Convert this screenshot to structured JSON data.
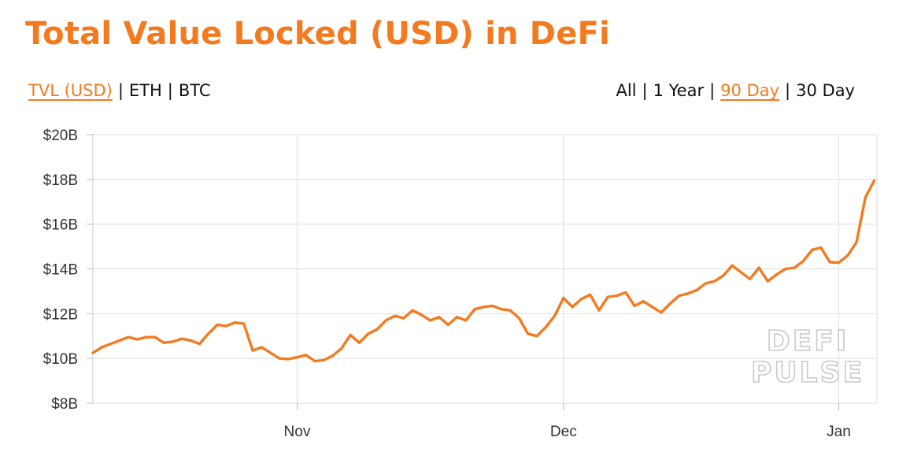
{
  "chart_data": {
    "type": "line",
    "title": "Total Value Locked (USD) in DeFi",
    "metric_tabs": [
      {
        "label": "TVL (USD)",
        "active": true
      },
      {
        "label": "ETH",
        "active": false
      },
      {
        "label": "BTC",
        "active": false
      }
    ],
    "range_tabs": [
      {
        "label": "All",
        "active": false
      },
      {
        "label": "1 Year",
        "active": false
      },
      {
        "label": "90 Day",
        "active": true
      },
      {
        "label": "30 Day",
        "active": false
      }
    ],
    "y_ticks": [
      "$8B",
      "$10B",
      "$12B",
      "$14B",
      "$16B",
      "$18B",
      "$20B"
    ],
    "x_ticks": [
      {
        "label": "Nov",
        "x": 0
      },
      {
        "label": "Dec",
        "x": 30
      },
      {
        "label": "Jan",
        "x": 61
      }
    ],
    "ylim": [
      8,
      20
    ],
    "xlim": [
      -23,
      65.3
    ],
    "grid": true,
    "line_color": "#f47a20",
    "watermark": [
      "DEFI",
      "PULSE"
    ],
    "series": [
      {
        "x": [
          -23,
          -22,
          -21,
          -20,
          -19,
          -18,
          -17,
          -16,
          -15,
          -14,
          -13,
          -12,
          -11,
          -10,
          -9,
          -8,
          -7,
          -6,
          -5,
          -4,
          -3,
          -2,
          -1,
          0,
          1,
          2,
          3,
          4,
          5,
          6,
          7,
          8,
          9,
          10,
          11,
          12,
          13,
          14,
          15,
          16,
          17,
          18,
          19,
          20,
          21,
          22,
          23,
          24,
          25,
          26,
          27,
          28,
          29,
          30,
          31,
          32,
          33,
          34,
          35,
          36,
          37,
          38,
          39,
          40,
          41,
          42,
          43,
          44,
          45,
          46,
          47,
          48,
          49,
          50,
          51,
          52,
          53,
          54,
          55,
          56,
          57,
          58,
          59,
          60,
          61,
          62,
          63,
          64,
          65
        ],
        "values": [
          10.25,
          10.5,
          10.65,
          10.8,
          10.95,
          10.85,
          10.95,
          10.95,
          10.7,
          10.75,
          10.88,
          10.8,
          10.65,
          11.1,
          11.5,
          11.45,
          11.6,
          11.55,
          10.35,
          10.5,
          10.25,
          10.0,
          9.97,
          10.05,
          10.15,
          9.88,
          9.92,
          10.12,
          10.45,
          11.05,
          10.7,
          11.1,
          11.3,
          11.7,
          11.9,
          11.8,
          12.15,
          11.95,
          11.7,
          11.85,
          11.5,
          11.85,
          11.7,
          12.2,
          12.3,
          12.35,
          12.2,
          12.15,
          11.8,
          11.1,
          11.0,
          11.4,
          11.9,
          12.7,
          12.3,
          12.65,
          12.85,
          12.15,
          12.75,
          12.8,
          12.95,
          12.35,
          12.55,
          12.3,
          12.05,
          12.45,
          12.8,
          12.9,
          13.05,
          13.35,
          13.45,
          13.7,
          14.15,
          13.85,
          13.55,
          14.05,
          13.45,
          13.75,
          14.0,
          14.05,
          14.35,
          14.85,
          14.95,
          14.3,
          14.28,
          14.6,
          15.2,
          17.2,
          17.95
        ]
      }
    ]
  }
}
